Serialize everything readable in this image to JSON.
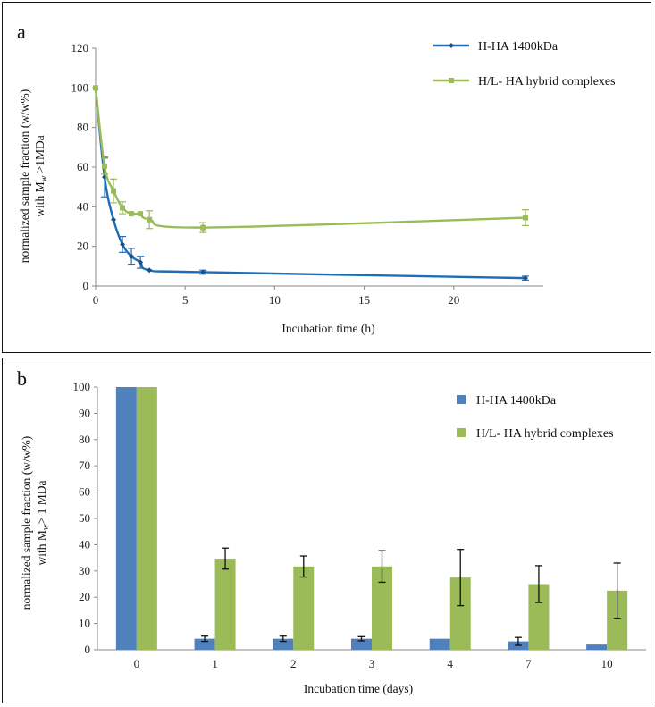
{
  "chart_data": [
    {
      "panel_letter": "a",
      "type": "line",
      "xlabel": "Incubation time (h)",
      "ylabel": [
        "normalized sample fraction (w/w%)",
        "with M",
        "w",
        " >1MDa"
      ],
      "xlim": [
        0,
        25
      ],
      "ylim": [
        0,
        120
      ],
      "xticks": [
        0,
        5,
        10,
        15,
        20
      ],
      "yticks": [
        0,
        20,
        40,
        60,
        80,
        100,
        120
      ],
      "legend_position": "top-right",
      "series": [
        {
          "name": "H-HA 1400kDa",
          "color": "#1f6db5",
          "marker": "diamond",
          "x": [
            0,
            0.5,
            1,
            1.5,
            2,
            2.5,
            3,
            6,
            24
          ],
          "y": [
            100,
            55,
            33.5,
            21,
            15,
            12,
            8,
            7,
            4
          ],
          "err": [
            0,
            10,
            0,
            4,
            4,
            3,
            0,
            1,
            1
          ]
        },
        {
          "name": "H/L- HA hybrid complexes",
          "color": "#9bbb59",
          "marker": "square",
          "x": [
            0,
            0.5,
            1,
            1.5,
            2,
            2.5,
            3,
            6,
            24
          ],
          "y": [
            100,
            60.5,
            48,
            39.5,
            36.5,
            36.5,
            33.5,
            29.5,
            34.5
          ],
          "err": [
            0,
            4,
            6,
            3,
            0,
            0,
            4.5,
            2.5,
            4
          ]
        }
      ]
    },
    {
      "panel_letter": "b",
      "type": "bar",
      "xlabel": "Incubation time (days)",
      "ylabel": [
        "normalized sample fraction (w/w%)",
        "with M",
        "w",
        "> 1 MDa"
      ],
      "categories": [
        "0",
        "1",
        "2",
        "3",
        "4",
        "7",
        "10"
      ],
      "ylim": [
        0,
        100
      ],
      "yticks": [
        0,
        10,
        20,
        30,
        40,
        50,
        60,
        70,
        80,
        90,
        100
      ],
      "legend_position": "top-right",
      "series": [
        {
          "name": "H-HA 1400kDa",
          "color": "#4f81bd",
          "values": [
            100,
            4.2,
            4.2,
            4.2,
            4.2,
            3.2,
            2
          ],
          "err": [
            0,
            1,
            1,
            0.8,
            0,
            1.5,
            0
          ]
        },
        {
          "name": "H/L- HA hybrid complexes",
          "color": "#9bbb59",
          "values": [
            100,
            34.7,
            31.7,
            31.7,
            27.5,
            25,
            22.5
          ],
          "err": [
            0,
            4,
            4,
            6,
            10.7,
            7,
            10.5
          ]
        }
      ]
    }
  ]
}
